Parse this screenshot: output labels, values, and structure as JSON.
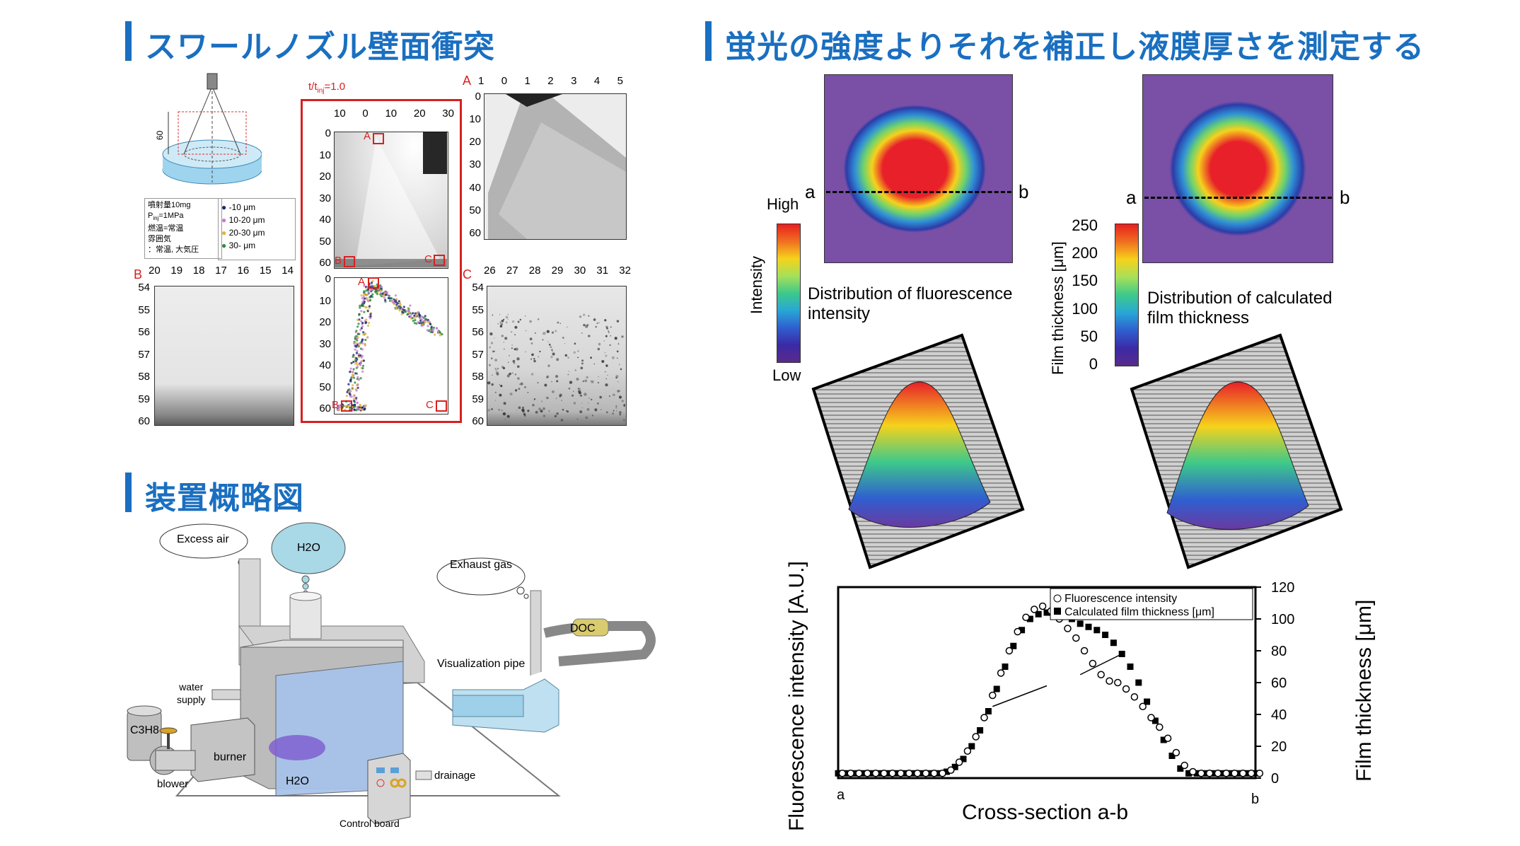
{
  "left_top": {
    "title": "スワールノズル壁面衝突",
    "time_label": "t/t",
    "time_sub": "inj",
    "time_value": "=1.0",
    "conditions": {
      "injection": "噴射量10mg",
      "pinj_p": "P",
      "pinj_sub": "inj",
      "pinj_v": "=1MPa",
      "fuel_temp": "燃温=常温",
      "atmos": "雰囲気",
      "atmos_val": "：常温, 大気圧"
    },
    "legend": [
      {
        "label": "-10 μm",
        "color": "#1a2a6c"
      },
      {
        "label": "10-20 μm",
        "color": "#c77ad6"
      },
      {
        "label": "20-30 μm",
        "color": "#e3b23c"
      },
      {
        "label": "30-   μm",
        "color": "#2e8b3a"
      }
    ],
    "height_label": "60",
    "panel_labels": {
      "A": "A",
      "B": "B",
      "C": "C"
    },
    "center_top_xticks": [
      "10",
      "0",
      "10",
      "20",
      "30"
    ],
    "center_top_yticks": [
      "0",
      "10",
      "20",
      "30",
      "40",
      "50",
      "60"
    ],
    "center_bot_yticks": [
      "0",
      "10",
      "20",
      "30",
      "40",
      "50",
      "60"
    ],
    "A_xticks": [
      "1",
      "0",
      "1",
      "2",
      "3",
      "4",
      "5"
    ],
    "A_yticks": [
      "0",
      "10",
      "20",
      "30",
      "40",
      "50",
      "60"
    ],
    "B_xticks": [
      "20",
      "19",
      "18",
      "17",
      "16",
      "15",
      "14"
    ],
    "B_yticks": [
      "54",
      "55",
      "56",
      "57",
      "58",
      "59",
      "60"
    ],
    "C_xticks": [
      "26",
      "27",
      "28",
      "29",
      "30",
      "31",
      "32"
    ],
    "C_yticks": [
      "54",
      "55",
      "56",
      "57",
      "58",
      "59",
      "60"
    ]
  },
  "left_bottom": {
    "title": "装置概略図",
    "labels": {
      "excess_air": "Excess air",
      "h2o_cloud": "H2O",
      "exhaust_gas": "Exhaust gas",
      "doc": "DOC",
      "visualization_pipe": "Visualization pipe",
      "water_supply_1": "water",
      "water_supply_2": "supply",
      "c3h8": "C3H8",
      "burner": "burner",
      "blower": "blower",
      "h2o_tank": "H2O",
      "drainage": "drainage",
      "control_board": "Control board"
    }
  },
  "right": {
    "title": "蛍光の強度よりそれを補正し液膜厚さを測定する",
    "a": "a",
    "b": "b",
    "high": "High",
    "low": "Low",
    "intensity": "Intensity",
    "dist_fluor_1": "Distribution of fluorescence",
    "dist_fluor_2": "intensity",
    "film_axis": "Film thickness [μm]",
    "film_ticks": [
      "250",
      "200",
      "150",
      "100",
      "50",
      "0"
    ],
    "dist_film_1": "Distribution of calculated",
    "dist_film_2": "film thickness"
  },
  "chart_data": {
    "type": "scatter",
    "xlabel": "Cross-section a-b",
    "x_start_label": "a",
    "x_end_label": "b",
    "ylabel_left": "Fluorescence intensity [A.U.]",
    "ylabel_right": "Film thickness [μm]",
    "y_right_ticks": [
      "120",
      "100",
      "80",
      "60",
      "40",
      "20",
      "0"
    ],
    "ylim": [
      0,
      120
    ],
    "xlim": [
      0,
      100
    ],
    "series": [
      {
        "name": "Fluorescence intensity",
        "marker": "open-circle",
        "x": [
          0,
          2,
          4,
          6,
          8,
          10,
          12,
          14,
          16,
          18,
          20,
          22,
          24,
          26,
          28,
          30,
          32,
          34,
          36,
          38,
          40,
          42,
          44,
          46,
          48,
          50,
          52,
          54,
          56,
          58,
          60,
          62,
          64,
          66,
          68,
          70,
          72,
          74,
          76,
          78,
          80,
          82,
          84,
          86,
          88,
          90,
          92,
          94,
          96,
          98,
          100
        ],
        "y": [
          3,
          3,
          3,
          3,
          3,
          3,
          3,
          3,
          3,
          3,
          3,
          3,
          3,
          5,
          10,
          17,
          26,
          38,
          52,
          66,
          80,
          92,
          101,
          106,
          108,
          105,
          100,
          94,
          88,
          80,
          72,
          65,
          61,
          60,
          56,
          51,
          45,
          38,
          32,
          25,
          16,
          8,
          4,
          3,
          3,
          3,
          3,
          3,
          3,
          3,
          3
        ]
      },
      {
        "name": "Calculated film thickness [μm]",
        "marker": "filled-square",
        "x": [
          0,
          2,
          4,
          6,
          8,
          10,
          12,
          14,
          16,
          18,
          20,
          22,
          24,
          26,
          28,
          30,
          32,
          34,
          36,
          38,
          40,
          42,
          44,
          46,
          48,
          50,
          52,
          54,
          56,
          58,
          60,
          62,
          64,
          66,
          68,
          70,
          72,
          74,
          76,
          78,
          80,
          82,
          84,
          86,
          88,
          90,
          92,
          94,
          96,
          98,
          100
        ],
        "y": [
          3,
          3,
          3,
          3,
          3,
          3,
          3,
          3,
          3,
          3,
          3,
          3,
          3,
          4,
          7,
          12,
          20,
          30,
          42,
          56,
          70,
          83,
          93,
          100,
          103,
          104,
          104,
          103,
          100,
          97,
          95,
          93,
          90,
          85,
          78,
          70,
          60,
          48,
          36,
          24,
          14,
          6,
          3,
          3,
          3,
          3,
          3,
          3,
          3,
          3,
          3
        ]
      }
    ]
  }
}
